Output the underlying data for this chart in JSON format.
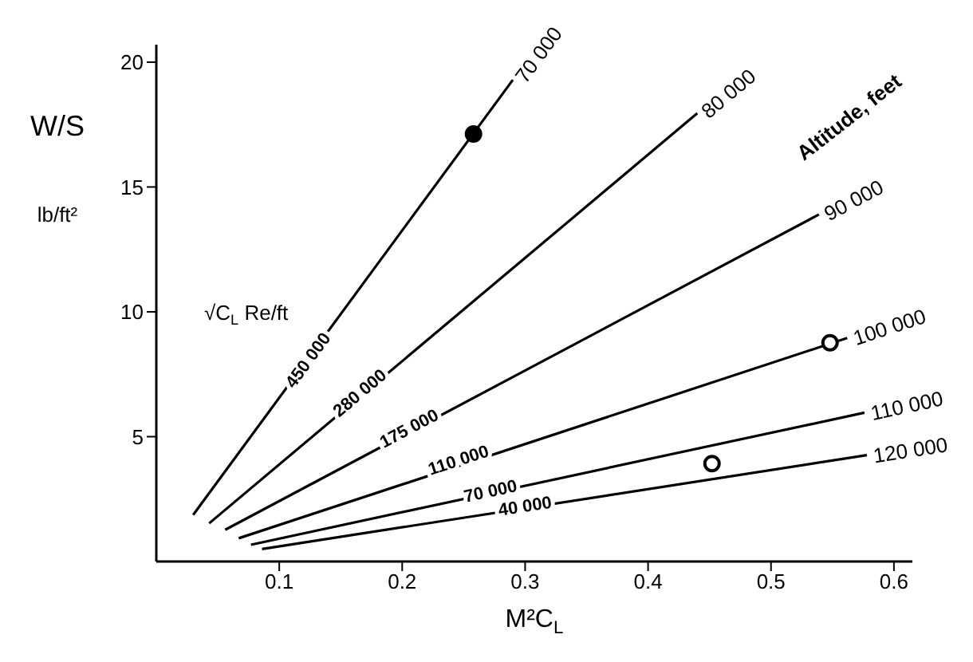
{
  "chart_data": {
    "type": "line",
    "xlabel": "M²C$_{L}$",
    "ylabel": "W/S\nlb/ft²",
    "xlim": [
      0,
      0.615
    ],
    "ylim": [
      0,
      20.7
    ],
    "xticks": [
      0.1,
      0.2,
      0.3,
      0.4,
      0.5,
      0.6
    ],
    "yticks": [
      5,
      10,
      15,
      20
    ],
    "marker": "none",
    "series": [
      {
        "name": "70 000",
        "color": "#000000",
        "x": [
          0.03,
          0.29
        ],
        "values": [
          1.87,
          19.29
        ]
      },
      {
        "name": "80 000",
        "color": "#000000",
        "x": [
          0.043,
          0.44
        ],
        "values": [
          1.53,
          17.95
        ]
      },
      {
        "name": "90 000",
        "color": "#000000",
        "x": [
          0.056,
          0.539
        ],
        "values": [
          1.27,
          13.9
        ]
      },
      {
        "name": "100 000",
        "color": "#000000",
        "x": [
          0.067,
          0.562
        ],
        "values": [
          0.93,
          8.95
        ]
      },
      {
        "name": "110 000",
        "color": "#000000",
        "x": [
          0.077,
          0.576
        ],
        "values": [
          0.67,
          5.96
        ]
      },
      {
        "name": "120 000",
        "color": "#000000",
        "x": [
          0.086,
          0.578
        ],
        "values": [
          0.5,
          4.26
        ]
      },
      {
        "type": "scatter",
        "marker": "circle",
        "color": "#000000",
        "x": [
          0.258
        ],
        "values": [
          17.12
        ]
      },
      {
        "type": "scatter",
        "marker": "circle",
        "color": "#000000",
        "x": [
          0.548,
          0.452
        ],
        "values": [
          8.76,
          3.92
        ]
      }
    ],
    "annotations": [
      {
        "text": "450 000",
        "x": 0.124,
        "y": 8.04
      },
      {
        "text": "280 000",
        "x": 0.166,
        "y": 6.72
      },
      {
        "text": "175 000",
        "x": 0.206,
        "y": 5.29
      },
      {
        "text": "110 000",
        "x": 0.246,
        "y": 4.02
      },
      {
        "text": "70 000",
        "x": 0.272,
        "y": 2.78
      },
      {
        "text": "40 000",
        "x": 0.3,
        "y": 2.18
      },
      "Altitude,  feet",
      "√C$_{L}$ Re/ft"
    ]
  }
}
